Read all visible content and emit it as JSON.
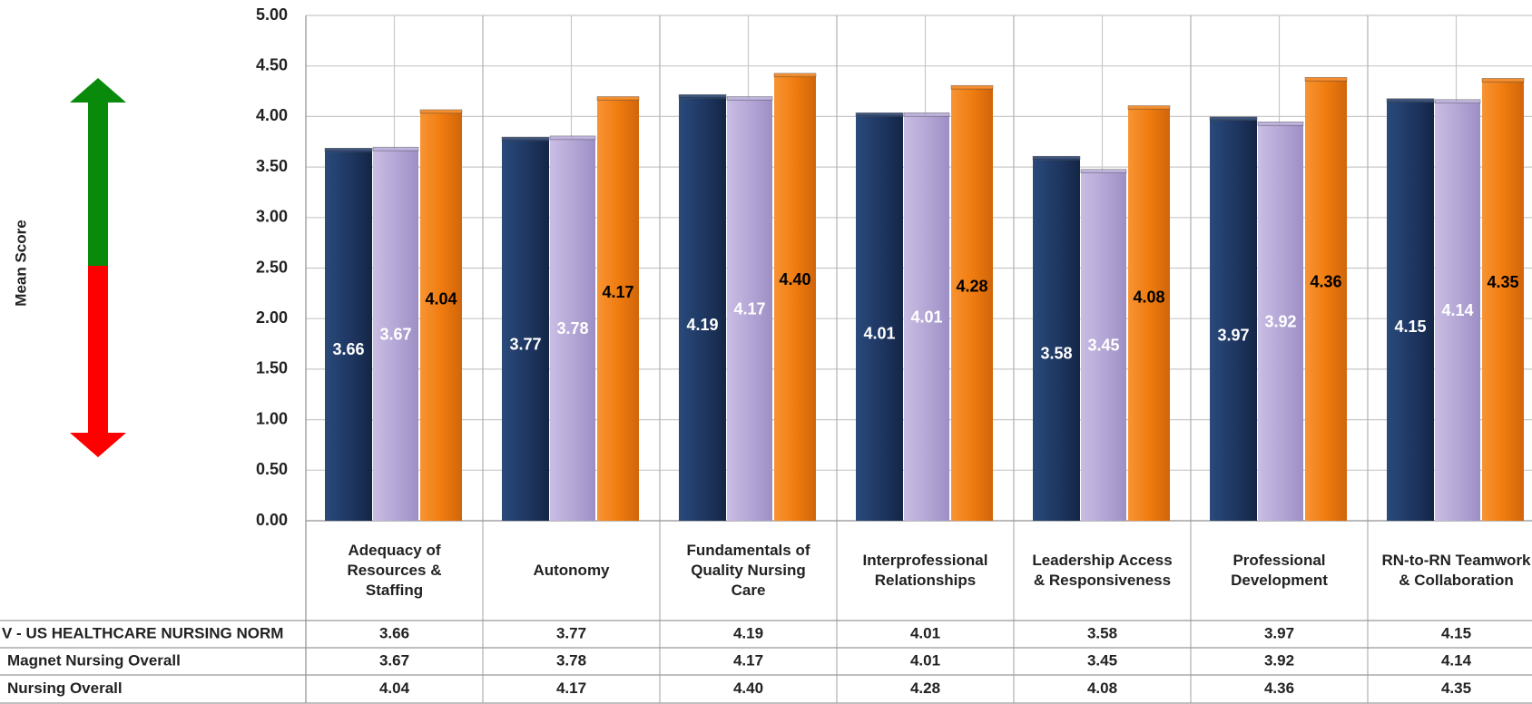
{
  "chart_data": {
    "type": "bar",
    "y_label": "Mean Score",
    "categories": [
      "Adequacy of Resources & Staffing",
      "Autonomy",
      "Fundamentals of Quality Nursing Care",
      "Interprofessional Relationships",
      "Leadership Access & Responsiveness",
      "Professional Development",
      "RN-to-RN Teamwork & Collaboration"
    ],
    "series": [
      {
        "name": "V - US HEALTHCARE NURSING NORM",
        "color": "#1f3864",
        "values": [
          3.66,
          3.77,
          4.19,
          4.01,
          3.58,
          3.97,
          4.15
        ],
        "value_labels": [
          "3.66",
          "3.77",
          "4.19",
          "4.01",
          "3.58",
          "3.97",
          "4.15"
        ]
      },
      {
        "name": "Magnet Nursing Overall",
        "color": "#b4a7d6",
        "values": [
          3.67,
          3.78,
          4.17,
          4.01,
          3.45,
          3.92,
          4.14
        ],
        "value_labels": [
          "3.67",
          "3.78",
          "4.17",
          "4.01",
          "3.45",
          "3.92",
          "4.14"
        ]
      },
      {
        "name": "Nursing Overall",
        "color": "#f07c10",
        "values": [
          4.04,
          4.17,
          4.4,
          4.28,
          4.08,
          4.36,
          4.35
        ],
        "value_labels": [
          "4.04",
          "4.17",
          "4.40",
          "4.28",
          "4.08",
          "4.36",
          "4.35"
        ]
      }
    ],
    "ylim": [
      0,
      5
    ],
    "yticks": [
      {
        "value": 0,
        "label": "0.00"
      },
      {
        "value": 0.5,
        "label": "0.50"
      },
      {
        "value": 1,
        "label": "1.00"
      },
      {
        "value": 1.5,
        "label": "1.50"
      },
      {
        "value": 2,
        "label": "2.00"
      },
      {
        "value": 2.5,
        "label": "2.50"
      },
      {
        "value": 3,
        "label": "3.00"
      },
      {
        "value": 3.5,
        "label": "3.50"
      },
      {
        "value": 4,
        "label": "4.00"
      },
      {
        "value": 4.5,
        "label": "4.50"
      },
      {
        "value": 5,
        "label": "5.00"
      }
    ],
    "grid": true
  }
}
